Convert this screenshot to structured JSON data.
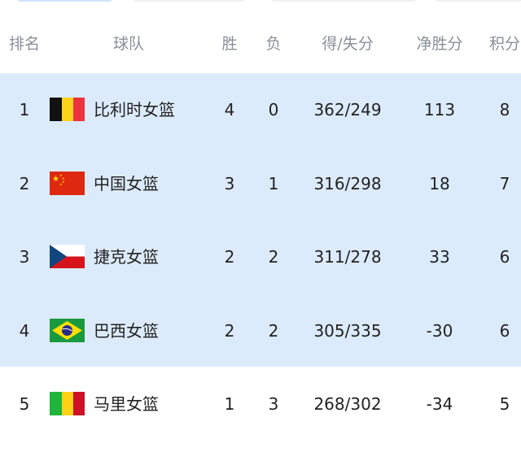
{
  "headers": {
    "rank": "排名",
    "team": "球队",
    "wins": "胜",
    "losses": "负",
    "score": "得/失分",
    "net": "净胜分",
    "points": "积分"
  },
  "rows": [
    {
      "rank": "1",
      "flag": "belgium-flag",
      "team": "比利时女篮",
      "wins": "4",
      "losses": "0",
      "score": "362/249",
      "net": "113",
      "points": "8"
    },
    {
      "rank": "2",
      "flag": "china-flag",
      "team": "中国女篮",
      "wins": "3",
      "losses": "1",
      "score": "316/298",
      "net": "18",
      "points": "7"
    },
    {
      "rank": "3",
      "flag": "czech-flag",
      "team": "捷克女篮",
      "wins": "2",
      "losses": "2",
      "score": "311/278",
      "net": "33",
      "points": "6"
    },
    {
      "rank": "4",
      "flag": "brazil-flag",
      "team": "巴西女篮",
      "wins": "2",
      "losses": "2",
      "score": "305/335",
      "net": "-30",
      "points": "6"
    },
    {
      "rank": "5",
      "flag": "mali-flag",
      "team": "马里女篮",
      "wins": "1",
      "losses": "3",
      "score": "268/302",
      "net": "-34",
      "points": "5"
    }
  ],
  "colors": {
    "highlight": "#dcebfc",
    "header_text": "#8a8f99"
  }
}
